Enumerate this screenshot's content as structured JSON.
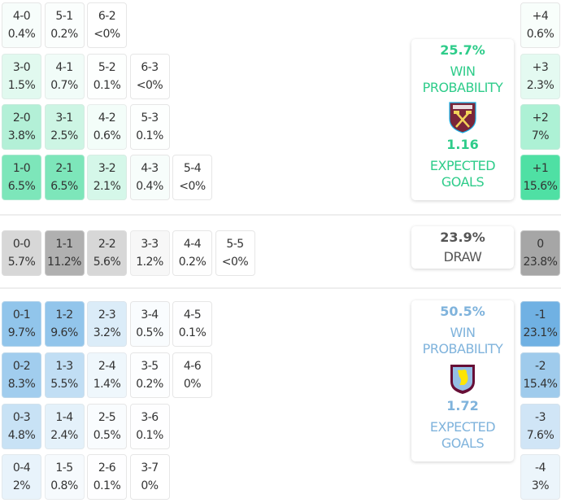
{
  "home": {
    "team": "West Ham United",
    "win_probability": "25.7%",
    "win_label_1": "WIN",
    "win_label_2": "PROBABILITY",
    "expected_goals": "1.16",
    "xg_label_1": "EXPECTED",
    "xg_label_2": "GOALS",
    "color": "#2ecc8a",
    "rows": [
      [
        {
          "s": "4-0",
          "p": "0.4%"
        },
        {
          "s": "5-1",
          "p": "0.2%"
        },
        {
          "s": "6-2",
          "p": "<0%"
        }
      ],
      [
        {
          "s": "3-0",
          "p": "1.5%"
        },
        {
          "s": "4-1",
          "p": "0.7%"
        },
        {
          "s": "5-2",
          "p": "0.1%"
        },
        {
          "s": "6-3",
          "p": "<0%"
        }
      ],
      [
        {
          "s": "2-0",
          "p": "3.8%"
        },
        {
          "s": "3-1",
          "p": "2.5%"
        },
        {
          "s": "4-2",
          "p": "0.6%"
        },
        {
          "s": "5-3",
          "p": "0.1%"
        }
      ],
      [
        {
          "s": "1-0",
          "p": "6.5%"
        },
        {
          "s": "2-1",
          "p": "6.5%"
        },
        {
          "s": "3-2",
          "p": "2.1%"
        },
        {
          "s": "4-3",
          "p": "0.4%"
        },
        {
          "s": "5-4",
          "p": "<0%"
        }
      ]
    ],
    "margins": [
      {
        "s": "+4",
        "p": "0.6%"
      },
      {
        "s": "+3",
        "p": "2.3%"
      },
      {
        "s": "+2",
        "p": "7%"
      },
      {
        "s": "+1",
        "p": "15.6%"
      }
    ]
  },
  "draw": {
    "probability": "23.9%",
    "label": "DRAW",
    "row": [
      {
        "s": "0-0",
        "p": "5.7%"
      },
      {
        "s": "1-1",
        "p": "11.2%"
      },
      {
        "s": "2-2",
        "p": "5.6%"
      },
      {
        "s": "3-3",
        "p": "1.2%"
      },
      {
        "s": "4-4",
        "p": "0.2%"
      },
      {
        "s": "5-5",
        "p": "<0%"
      }
    ],
    "margin": {
      "s": "0",
      "p": "23.8%"
    }
  },
  "away": {
    "team": "Aston Villa",
    "win_probability": "50.5%",
    "win_label_1": "WIN",
    "win_label_2": "PROBABILITY",
    "expected_goals": "1.72",
    "xg_label_1": "EXPECTED",
    "xg_label_2": "GOALS",
    "color": "#7fb3dc",
    "rows": [
      [
        {
          "s": "0-1",
          "p": "9.7%"
        },
        {
          "s": "1-2",
          "p": "9.6%"
        },
        {
          "s": "2-3",
          "p": "3.2%"
        },
        {
          "s": "3-4",
          "p": "0.5%"
        },
        {
          "s": "4-5",
          "p": "0.1%"
        }
      ],
      [
        {
          "s": "0-2",
          "p": "8.3%"
        },
        {
          "s": "1-3",
          "p": "5.5%"
        },
        {
          "s": "2-4",
          "p": "1.4%"
        },
        {
          "s": "3-5",
          "p": "0.2%"
        },
        {
          "s": "4-6",
          "p": "0%"
        }
      ],
      [
        {
          "s": "0-3",
          "p": "4.8%"
        },
        {
          "s": "1-4",
          "p": "2.4%"
        },
        {
          "s": "2-5",
          "p": "0.5%"
        },
        {
          "s": "3-6",
          "p": "0.1%"
        }
      ],
      [
        {
          "s": "0-4",
          "p": "2%"
        },
        {
          "s": "1-5",
          "p": "0.8%"
        },
        {
          "s": "2-6",
          "p": "0.1%"
        },
        {
          "s": "3-7",
          "p": "0%"
        }
      ]
    ],
    "margins": [
      {
        "s": "-1",
        "p": "23.1%"
      },
      {
        "s": "-2",
        "p": "15.4%"
      },
      {
        "s": "-3",
        "p": "7.6%"
      },
      {
        "s": "-4",
        "p": "3%"
      }
    ]
  }
}
